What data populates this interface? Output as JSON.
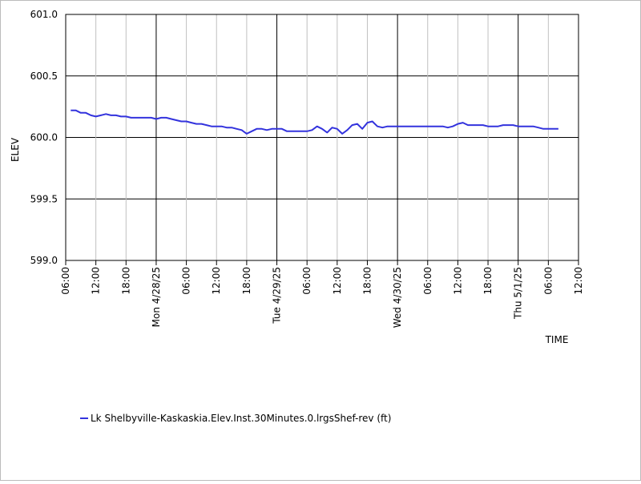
{
  "chart_data": {
    "type": "line",
    "ylabel": "ELEV",
    "xlabel": "TIME",
    "ylim": [
      599.0,
      601.0
    ],
    "y_ticks": [
      599.0,
      599.5,
      600.0,
      600.5,
      601.0
    ],
    "y_tick_labels": [
      "599.0",
      "599.5",
      "600.0",
      "600.5",
      "601.0"
    ],
    "xlim": [
      "2025-04-27T06:00",
      "2025-05-01T12:00"
    ],
    "x_ticks": [
      {
        "t": "2025-04-27T06:00",
        "label": "06:00",
        "major": false
      },
      {
        "t": "2025-04-27T12:00",
        "label": "12:00",
        "major": false
      },
      {
        "t": "2025-04-27T18:00",
        "label": "18:00",
        "major": false
      },
      {
        "t": "2025-04-28T00:00",
        "label": "Mon 4/28/25",
        "major": true
      },
      {
        "t": "2025-04-28T06:00",
        "label": "06:00",
        "major": false
      },
      {
        "t": "2025-04-28T12:00",
        "label": "12:00",
        "major": false
      },
      {
        "t": "2025-04-28T18:00",
        "label": "18:00",
        "major": false
      },
      {
        "t": "2025-04-29T00:00",
        "label": "Tue 4/29/25",
        "major": true
      },
      {
        "t": "2025-04-29T06:00",
        "label": "06:00",
        "major": false
      },
      {
        "t": "2025-04-29T12:00",
        "label": "12:00",
        "major": false
      },
      {
        "t": "2025-04-29T18:00",
        "label": "18:00",
        "major": false
      },
      {
        "t": "2025-04-30T00:00",
        "label": "Wed 4/30/25",
        "major": true
      },
      {
        "t": "2025-04-30T06:00",
        "label": "06:00",
        "major": false
      },
      {
        "t": "2025-04-30T12:00",
        "label": "12:00",
        "major": false
      },
      {
        "t": "2025-04-30T18:00",
        "label": "18:00",
        "major": false
      },
      {
        "t": "2025-05-01T00:00",
        "label": "Thu 5/1/25",
        "major": true
      },
      {
        "t": "2025-05-01T06:00",
        "label": "06:00",
        "major": false
      },
      {
        "t": "2025-05-01T12:00",
        "label": "12:00",
        "major": false
      }
    ],
    "grid": true,
    "legend_position": "bottom-left",
    "series": [
      {
        "name": "Lk Shelbyville-Kaskaskia.Elev.Inst.30Minutes.0.lrgsShef-rev (ft)",
        "color": "#3333dd",
        "points": [
          [
            "2025-04-27T07:00",
            600.22
          ],
          [
            "2025-04-27T08:00",
            600.22
          ],
          [
            "2025-04-27T09:00",
            600.2
          ],
          [
            "2025-04-27T10:00",
            600.2
          ],
          [
            "2025-04-27T11:00",
            600.18
          ],
          [
            "2025-04-27T12:00",
            600.17
          ],
          [
            "2025-04-27T13:00",
            600.18
          ],
          [
            "2025-04-27T14:00",
            600.19
          ],
          [
            "2025-04-27T15:00",
            600.18
          ],
          [
            "2025-04-27T16:00",
            600.18
          ],
          [
            "2025-04-27T17:00",
            600.17
          ],
          [
            "2025-04-27T18:00",
            600.17
          ],
          [
            "2025-04-27T19:00",
            600.16
          ],
          [
            "2025-04-27T20:00",
            600.16
          ],
          [
            "2025-04-27T21:00",
            600.16
          ],
          [
            "2025-04-27T22:00",
            600.16
          ],
          [
            "2025-04-27T23:00",
            600.16
          ],
          [
            "2025-04-28T00:00",
            600.15
          ],
          [
            "2025-04-28T01:00",
            600.16
          ],
          [
            "2025-04-28T02:00",
            600.16
          ],
          [
            "2025-04-28T03:00",
            600.15
          ],
          [
            "2025-04-28T04:00",
            600.14
          ],
          [
            "2025-04-28T05:00",
            600.13
          ],
          [
            "2025-04-28T06:00",
            600.13
          ],
          [
            "2025-04-28T07:00",
            600.12
          ],
          [
            "2025-04-28T08:00",
            600.11
          ],
          [
            "2025-04-28T09:00",
            600.11
          ],
          [
            "2025-04-28T10:00",
            600.1
          ],
          [
            "2025-04-28T11:00",
            600.09
          ],
          [
            "2025-04-28T12:00",
            600.09
          ],
          [
            "2025-04-28T13:00",
            600.09
          ],
          [
            "2025-04-28T14:00",
            600.08
          ],
          [
            "2025-04-28T15:00",
            600.08
          ],
          [
            "2025-04-28T16:00",
            600.07
          ],
          [
            "2025-04-28T17:00",
            600.06
          ],
          [
            "2025-04-28T18:00",
            600.03
          ],
          [
            "2025-04-28T19:00",
            600.05
          ],
          [
            "2025-04-28T20:00",
            600.07
          ],
          [
            "2025-04-28T21:00",
            600.07
          ],
          [
            "2025-04-28T22:00",
            600.06
          ],
          [
            "2025-04-28T23:00",
            600.07
          ],
          [
            "2025-04-29T00:00",
            600.07
          ],
          [
            "2025-04-29T01:00",
            600.07
          ],
          [
            "2025-04-29T02:00",
            600.05
          ],
          [
            "2025-04-29T03:00",
            600.05
          ],
          [
            "2025-04-29T04:00",
            600.05
          ],
          [
            "2025-04-29T05:00",
            600.05
          ],
          [
            "2025-04-29T06:00",
            600.05
          ],
          [
            "2025-04-29T07:00",
            600.06
          ],
          [
            "2025-04-29T08:00",
            600.09
          ],
          [
            "2025-04-29T09:00",
            600.07
          ],
          [
            "2025-04-29T10:00",
            600.04
          ],
          [
            "2025-04-29T11:00",
            600.08
          ],
          [
            "2025-04-29T12:00",
            600.07
          ],
          [
            "2025-04-29T13:00",
            600.03
          ],
          [
            "2025-04-29T14:00",
            600.06
          ],
          [
            "2025-04-29T15:00",
            600.1
          ],
          [
            "2025-04-29T16:00",
            600.11
          ],
          [
            "2025-04-29T17:00",
            600.07
          ],
          [
            "2025-04-29T18:00",
            600.12
          ],
          [
            "2025-04-29T19:00",
            600.13
          ],
          [
            "2025-04-29T20:00",
            600.09
          ],
          [
            "2025-04-29T21:00",
            600.08
          ],
          [
            "2025-04-29T22:00",
            600.09
          ],
          [
            "2025-04-29T23:00",
            600.09
          ],
          [
            "2025-04-30T00:00",
            600.09
          ],
          [
            "2025-04-30T01:00",
            600.09
          ],
          [
            "2025-04-30T02:00",
            600.09
          ],
          [
            "2025-04-30T03:00",
            600.09
          ],
          [
            "2025-04-30T04:00",
            600.09
          ],
          [
            "2025-04-30T05:00",
            600.09
          ],
          [
            "2025-04-30T06:00",
            600.09
          ],
          [
            "2025-04-30T07:00",
            600.09
          ],
          [
            "2025-04-30T08:00",
            600.09
          ],
          [
            "2025-04-30T09:00",
            600.09
          ],
          [
            "2025-04-30T10:00",
            600.08
          ],
          [
            "2025-04-30T11:00",
            600.09
          ],
          [
            "2025-04-30T12:00",
            600.11
          ],
          [
            "2025-04-30T13:00",
            600.12
          ],
          [
            "2025-04-30T14:00",
            600.1
          ],
          [
            "2025-04-30T15:00",
            600.1
          ],
          [
            "2025-04-30T16:00",
            600.1
          ],
          [
            "2025-04-30T17:00",
            600.1
          ],
          [
            "2025-04-30T18:00",
            600.09
          ],
          [
            "2025-04-30T19:00",
            600.09
          ],
          [
            "2025-04-30T20:00",
            600.09
          ],
          [
            "2025-04-30T21:00",
            600.1
          ],
          [
            "2025-04-30T22:00",
            600.1
          ],
          [
            "2025-04-30T23:00",
            600.1
          ],
          [
            "2025-05-01T00:00",
            600.09
          ],
          [
            "2025-05-01T01:00",
            600.09
          ],
          [
            "2025-05-01T02:00",
            600.09
          ],
          [
            "2025-05-01T03:00",
            600.09
          ],
          [
            "2025-05-01T04:00",
            600.08
          ],
          [
            "2025-05-01T05:00",
            600.07
          ],
          [
            "2025-05-01T06:00",
            600.07
          ],
          [
            "2025-05-01T07:00",
            600.07
          ],
          [
            "2025-05-01T08:00",
            600.07
          ]
        ]
      }
    ]
  }
}
